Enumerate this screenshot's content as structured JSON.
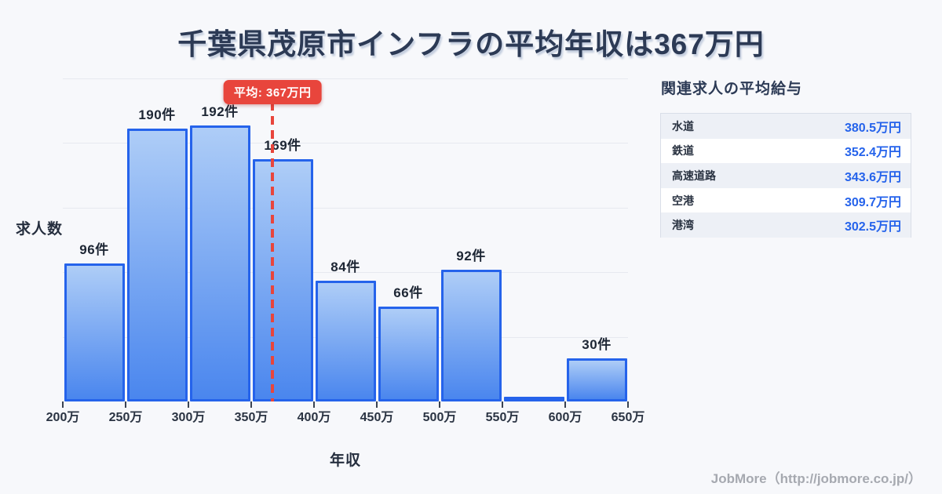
{
  "title": "千葉県茂原市インフラの平均年収は367万円",
  "chart_data": {
    "type": "bar",
    "title": "千葉県茂原市インフラの平均年収は367万円",
    "xlabel": "年収",
    "ylabel": "求人数",
    "unit": "件",
    "categories": [
      "200万-250万",
      "250万-300万",
      "300万-350万",
      "350万-400万",
      "400万-450万",
      "450万-500万",
      "500万-550万",
      "550万-600万",
      "600万-650万"
    ],
    "x_tick_labels": [
      "200万",
      "250万",
      "300万",
      "350万",
      "400万",
      "450万",
      "500万",
      "550万",
      "600万",
      "650万"
    ],
    "x_range_manen": [
      200,
      650
    ],
    "values": [
      96,
      190,
      192,
      169,
      84,
      66,
      92,
      3,
      30
    ],
    "bar_labels": [
      "96件",
      "190件",
      "192件",
      "169件",
      "84件",
      "66件",
      "92件",
      "",
      "30件"
    ],
    "average": {
      "value": 367,
      "label": "平均: 367万円"
    },
    "ylim": [
      0,
      225
    ],
    "grid": true,
    "gridlines": 5
  },
  "side_panel": {
    "heading": "関連求人の平均給与",
    "rows": [
      {
        "label": "水道",
        "value": "380.5万円"
      },
      {
        "label": "鉄道",
        "value": "352.4万円"
      },
      {
        "label": "高速道路",
        "value": "343.6万円"
      },
      {
        "label": "空港",
        "value": "309.7万円"
      },
      {
        "label": "港湾",
        "value": "302.5万円"
      }
    ]
  },
  "footer": {
    "credit": "JobMore（http://jobmore.co.jp/）"
  },
  "colors": {
    "background": "#f7f8fb",
    "title_navy": "#2c3a55",
    "bar_border": "#2563eb",
    "bar_gradient_top": "#aecdf7",
    "bar_gradient_bottom": "#4a86ee",
    "average_red": "#e8453c",
    "value_blue": "#2563eb",
    "gridline": "#e7e9f0",
    "row_alt_bg": "#edf0f6",
    "footer_gray": "#a6a9b0"
  }
}
